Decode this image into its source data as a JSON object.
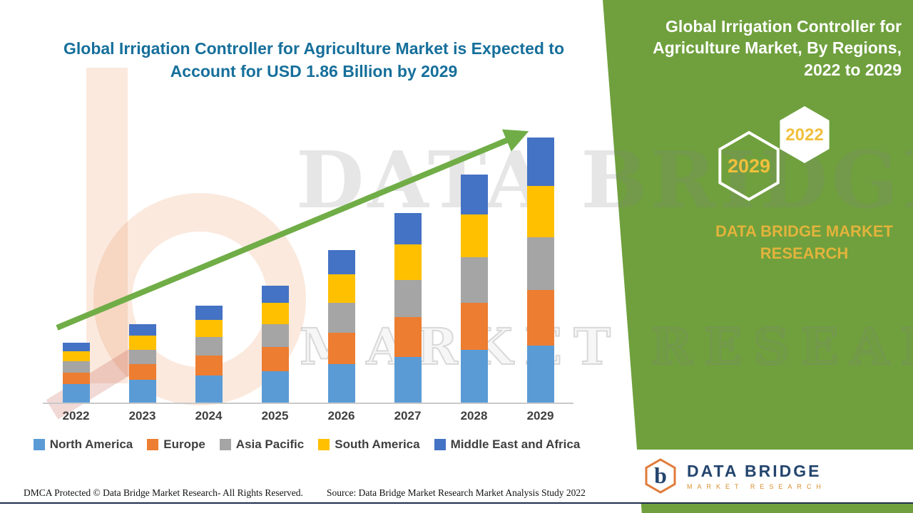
{
  "header": {
    "title_line1": "Global Irrigation Controller for Agriculture Market is Expected to",
    "title_line2": "Account for USD 1.86 Billion by 2029"
  },
  "chart_data": {
    "type": "bar",
    "stacked": true,
    "unit": "USD Billion",
    "title": "Global Irrigation Controller for Agriculture Market is Expected to Account for USD 1.86 Billion by 2029",
    "categories": [
      "2022",
      "2023",
      "2024",
      "2025",
      "2026",
      "2027",
      "2028",
      "2029"
    ],
    "series": [
      {
        "name": "North America",
        "color": "#5b9bd5",
        "values": [
          0.13,
          0.16,
          0.19,
          0.22,
          0.27,
          0.32,
          0.37,
          0.4
        ]
      },
      {
        "name": "Europe",
        "color": "#ed7d31",
        "values": [
          0.08,
          0.11,
          0.14,
          0.17,
          0.22,
          0.28,
          0.33,
          0.39
        ]
      },
      {
        "name": "Asia Pacific",
        "color": "#a5a5a5",
        "values": [
          0.08,
          0.1,
          0.13,
          0.16,
          0.21,
          0.26,
          0.32,
          0.37
        ]
      },
      {
        "name": "South America",
        "color": "#ffc000",
        "values": [
          0.07,
          0.1,
          0.12,
          0.15,
          0.2,
          0.25,
          0.3,
          0.36
        ]
      },
      {
        "name": "Middle East and Africa",
        "color": "#4472c4",
        "values": [
          0.06,
          0.08,
          0.1,
          0.12,
          0.17,
          0.22,
          0.28,
          0.34
        ]
      }
    ],
    "totals_estimated": [
      0.42,
      0.55,
      0.68,
      0.82,
      1.07,
      1.33,
      1.6,
      1.86
    ],
    "ylim": [
      0,
      2.0
    ],
    "gridlines": false,
    "legend_position": "bottom",
    "trend_arrow": true,
    "arrow_color": "#70ad47"
  },
  "watermark": {
    "line1": "DATA BRIDGE",
    "line2": "MARKET RESEARCH"
  },
  "panel": {
    "title_line1": "Global Irrigation Controller for",
    "title_line2": "Agriculture Market, By Regions,",
    "title_line3": "2022 to 2029",
    "hex_back_year": "2029",
    "hex_front_year": "2022",
    "brand_line1": "DATA BRIDGE MARKET",
    "brand_line2": "RESEARCH",
    "colors": {
      "panel_green": "#6fa03d",
      "gold": "#e2b33c",
      "hex_year_gold": "#f0c03c",
      "title_teal": "#166f9b"
    }
  },
  "logo": {
    "name": "DATA BRIDGE",
    "tagline": "MARKET RESEARCH"
  },
  "footer": {
    "dmca": "DMCA Protected © Data Bridge Market Research- All Rights Reserved.",
    "source": "Source: Data Bridge Market Research Market Analysis Study 2022"
  }
}
